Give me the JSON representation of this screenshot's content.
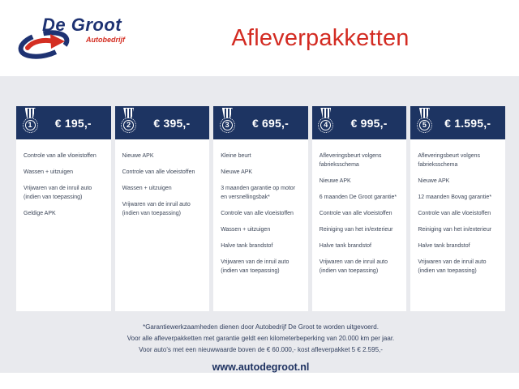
{
  "brand": {
    "name": "De Groot",
    "subtitle": "Autobedrijf",
    "navy": "#1e3272",
    "red": "#d42e22"
  },
  "header": {
    "title": "Afleverpakketten",
    "title_color": "#d32b22"
  },
  "packages": [
    {
      "number": "1",
      "price": "€ 195,-",
      "items": [
        "Controle van alle vloeistoffen",
        "Wassen + uitzuigen",
        "Vrijwaren van de inruil auto\n(indien van toepassing)",
        "Geldige APK"
      ]
    },
    {
      "number": "2",
      "price": "€ 395,-",
      "items": [
        "Nieuwe APK",
        "Controle van alle vloeistoffen",
        "Wassen + uitzuigen",
        "Vrijwaren van de inruil auto\n(indien van toepassing)"
      ]
    },
    {
      "number": "3",
      "price": "€ 695,-",
      "items": [
        "Kleine beurt",
        "Nieuwe APK",
        "3 maanden garantie op motor\nen versnellingsbak*",
        "Controle van alle vloeistoffen",
        "Wassen + uitzuigen",
        "Halve tank brandstof",
        "Vrijwaren van de inruil auto\n(indien van toepassing)"
      ]
    },
    {
      "number": "4",
      "price": "€ 995,-",
      "items": [
        "Afleveringsbeurt volgens\nfabrieksschema",
        "Nieuwe APK",
        "6 maanden De Groot garantie*",
        "Controle van alle vloeistoffen",
        "Reiniging van het in/exterieur",
        "Halve tank brandstof",
        "Vrijwaren van de inruil auto\n(indien van toepassing)"
      ]
    },
    {
      "number": "5",
      "price": "€ 1.595,-",
      "items": [
        "Afleveringsbeurt volgens\nfabrieksschema",
        "Nieuwe APK",
        "12 maanden Bovag garantie*",
        "Controle van alle vloeistoffen",
        "Reiniging van het in/exterieur",
        "Halve tank brandstof",
        "Vrijwaren van de inruil auto\n(indien van toepassing)"
      ]
    }
  ],
  "footer": {
    "notes": [
      "*Garantiewerkzaamheden dienen door Autobedrijf De Groot te worden uitgevoerd.",
      "Voor alle afleverpakketten met garantie geldt een kilometerbeperking van 20.000 km per jaar.",
      "Voor auto's met een nieuwwaarde boven de € 60.000,- kost afleverpakket 5 € 2.595,-"
    ],
    "website": "www.autodegroot.nl"
  },
  "colors": {
    "bar_navy": "#1d3462",
    "background_gray": "#e9eaee",
    "item_text": "#3c4658"
  }
}
